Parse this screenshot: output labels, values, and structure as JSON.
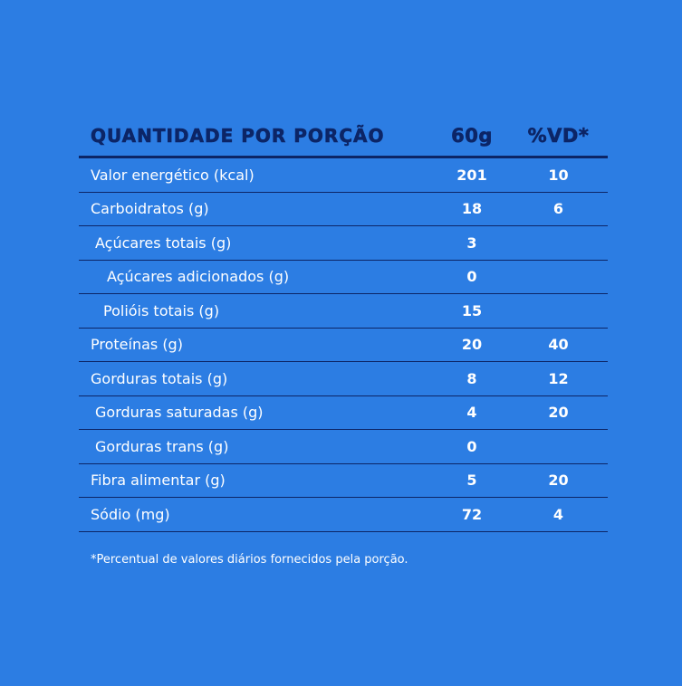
{
  "header": {
    "name": "QUANTIDADE POR PORÇÃO",
    "amount": "60g",
    "vd": "%VD*"
  },
  "rows": [
    {
      "name": "Valor energético (kcal)",
      "amount": "201",
      "vd": "10"
    },
    {
      "name": "Carboidratos (g)",
      "amount": "18",
      "vd": "6"
    },
    {
      "name": "Açúcares totais (g)",
      "amount": "3",
      "vd": ""
    },
    {
      "name": "Açúcares adicionados (g)",
      "amount": "0",
      "vd": ""
    },
    {
      "name": "Polióis totais (g)",
      "amount": "15",
      "vd": ""
    },
    {
      "name": "Proteínas (g)",
      "amount": "20",
      "vd": "40"
    },
    {
      "name": "Gorduras totais (g)",
      "amount": "8",
      "vd": "12"
    },
    {
      "name": "Gorduras saturadas (g)",
      "amount": "4",
      "vd": "20"
    },
    {
      "name": "Gorduras trans (g)",
      "amount": "0",
      "vd": ""
    },
    {
      "name": "Fibra alimentar (g)",
      "amount": "5",
      "vd": "20"
    },
    {
      "name": "Sódio (mg)",
      "amount": "72",
      "vd": "4"
    }
  ],
  "footnote": "*Percentual de valores diários fornecidos pela porção.",
  "colors": {
    "background": "#2c7de3",
    "accent": "#0c2566",
    "text": "#ffffff"
  }
}
